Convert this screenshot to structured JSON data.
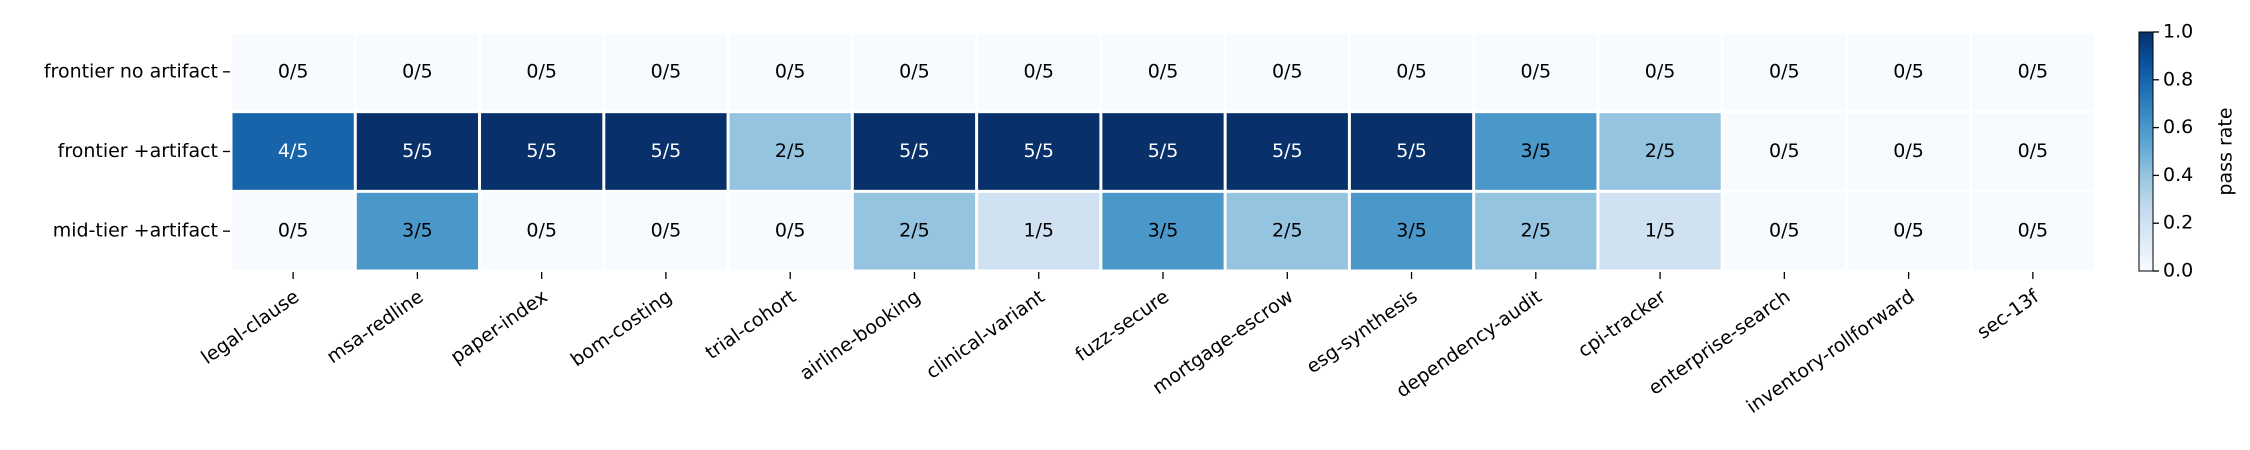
{
  "chart_data": {
    "type": "heatmap",
    "x_categories": [
      "legal-clause",
      "msa-redline",
      "paper-index",
      "bom-costing",
      "trial-cohort",
      "airline-booking",
      "clinical-variant",
      "fuzz-secure",
      "mortgage-escrow",
      "esg-synthesis",
      "dependency-audit",
      "cpi-tracker",
      "enterprise-search",
      "inventory-rollforward",
      "sec-13f"
    ],
    "y_categories": [
      "frontier no artifact",
      "frontier +artifact",
      "mid-tier +artifact"
    ],
    "values": [
      [
        0,
        0,
        0,
        0,
        0,
        0,
        0,
        0,
        0,
        0,
        0,
        0,
        0,
        0,
        0
      ],
      [
        0.8,
        1,
        1,
        1,
        0.4,
        1,
        1,
        1,
        1,
        1,
        0.6,
        0.4,
        0,
        0,
        0
      ],
      [
        0,
        0.6,
        0,
        0,
        0,
        0.4,
        0.2,
        0.6,
        0.4,
        0.6,
        0.4,
        0.2,
        0,
        0,
        0
      ]
    ],
    "value_labels": [
      [
        "0/5",
        "0/5",
        "0/5",
        "0/5",
        "0/5",
        "0/5",
        "0/5",
        "0/5",
        "0/5",
        "0/5",
        "0/5",
        "0/5",
        "0/5",
        "0/5",
        "0/5"
      ],
      [
        "4/5",
        "5/5",
        "5/5",
        "5/5",
        "2/5",
        "5/5",
        "5/5",
        "5/5",
        "5/5",
        "5/5",
        "3/5",
        "2/5",
        "0/5",
        "0/5",
        "0/5"
      ],
      [
        "0/5",
        "3/5",
        "0/5",
        "0/5",
        "0/5",
        "2/5",
        "1/5",
        "3/5",
        "2/5",
        "3/5",
        "2/5",
        "1/5",
        "0/5",
        "0/5",
        "0/5"
      ]
    ],
    "colormap": "Blues",
    "colorbar": {
      "label": "pass rate",
      "lim": [
        0,
        1
      ],
      "ticks": [
        {
          "value": 0,
          "label": "0.0"
        },
        0.2,
        0.4,
        0.6,
        0.8,
        {
          "value": 1,
          "label": "1.0"
        }
      ]
    }
  }
}
